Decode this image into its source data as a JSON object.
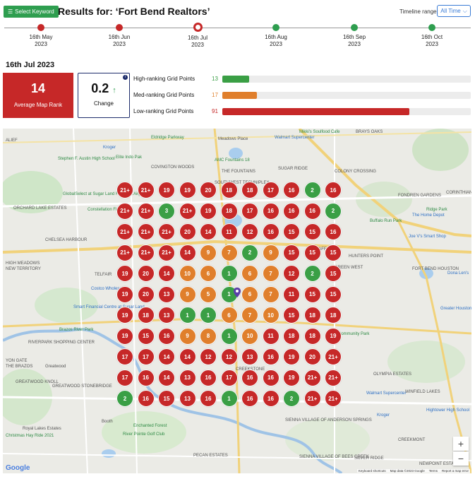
{
  "header": {
    "keyword_button": "Select Keyword",
    "keyword_icon": "list-icon",
    "title": "Results for: ‘Fort Bend Realtors’",
    "timeline_label": "Timeline range:",
    "timeline_value": "All Time"
  },
  "timeline": [
    {
      "date": "16th May",
      "year": "2023",
      "status": "red"
    },
    {
      "date": "16th Jun",
      "year": "2023",
      "status": "red"
    },
    {
      "date": "16th Jul",
      "year": "2023",
      "status": "selected"
    },
    {
      "date": "16th Aug",
      "year": "2023",
      "status": "green"
    },
    {
      "date": "16th Sep",
      "year": "2023",
      "status": "green"
    },
    {
      "date": "16th Oct",
      "year": "2023",
      "status": "green"
    }
  ],
  "selected_date": "16th Jul 2023",
  "stats": {
    "average_rank": "14",
    "average_label": "Average Map Rank",
    "change": "0.2",
    "change_arrow": "↑",
    "change_label": "Change",
    "info": "i"
  },
  "ranking": [
    {
      "label": "High-ranking Grid Points",
      "count": "13",
      "total": 121,
      "color": "#3a9f45"
    },
    {
      "label": "Med-ranking Grid Points",
      "count": "17",
      "total": 121,
      "color": "#e07f2c"
    },
    {
      "label": "Low-ranking Grid Points",
      "count": "91",
      "total": 121,
      "color": "#c62828"
    }
  ],
  "colors": {
    "red": "#c62828",
    "green": "#3a9f45",
    "orange": "#e07f2c"
  },
  "grid": [
    [
      "21+",
      "21+",
      "19",
      "19",
      "20",
      "18",
      "18",
      "17",
      "16",
      "2",
      "16"
    ],
    [
      "21+",
      "21+",
      "3",
      "21+",
      "19",
      "18",
      "17",
      "16",
      "16",
      "16",
      "2"
    ],
    [
      "21+",
      "21+",
      "21+",
      "20",
      "14",
      "11",
      "12",
      "16",
      "15",
      "15",
      "16"
    ],
    [
      "21+",
      "21+",
      "21+",
      "14",
      "9",
      "7",
      "2",
      "9",
      "15",
      "15",
      "15"
    ],
    [
      "19",
      "20",
      "14",
      "10",
      "6",
      "1",
      "6",
      "7",
      "12",
      "2",
      "15"
    ],
    [
      "19",
      "20",
      "13",
      "9",
      "5",
      "1",
      "6",
      "7",
      "11",
      "15",
      "15"
    ],
    [
      "19",
      "18",
      "13",
      "1",
      "1",
      "6",
      "7",
      "10",
      "15",
      "18",
      "18"
    ],
    [
      "19",
      "15",
      "16",
      "9",
      "8",
      "1",
      "10",
      "11",
      "18",
      "18",
      "19"
    ],
    [
      "17",
      "17",
      "14",
      "14",
      "12",
      "12",
      "13",
      "16",
      "19",
      "20",
      "21+"
    ],
    [
      "17",
      "16",
      "14",
      "13",
      "16",
      "17",
      "16",
      "16",
      "19",
      "21+",
      "21+"
    ],
    [
      "2",
      "16",
      "15",
      "13",
      "16",
      "1",
      "16",
      "16",
      "2",
      "21+",
      "21+"
    ]
  ],
  "map_labels": [
    "ALIEF",
    "BRAYS OAKS",
    "Mikki's Soulfood Cafe",
    "Kroger",
    "Eldridge Parkway",
    "Meadows Place",
    "Walmart Supercenter",
    "Stephen F. Austin High School",
    "Elite Indo Pak",
    "COVINGTON WOODS",
    "AMC Fountains 18",
    "THE FOUNTAINS",
    "SUGAR RIDGE",
    "COLONY CROSSING",
    "GlobalSelect at Sugar Land Regional Airport",
    "ORCHARD LAKE ESTATES",
    "Constellation Field",
    "SOUTHWEST TECHNIPLEX",
    "FONDREN GARDENS",
    "CORINTHIAN POINTE",
    "The Home Depot",
    "Ridge Park",
    "Buffalo Run Park",
    "Joe V's Smart Shop",
    "CHELSEA HARBOUR",
    "H-E-B",
    "HIGH MEADOWS",
    "NEW TERRITORY",
    "TELFAIR",
    "STAFFORD",
    "HUNTERS POINT",
    "Costco Wholesale",
    "GREEN WEST",
    "FORT BEND HOUSTON",
    "Smart Financial Centre at Sugar Land",
    "Greater Houston Sports C",
    "Brazos River Park",
    "RIVERPARK SHOPPING CENTER",
    "Community Park",
    "YON GATE",
    "THE BRAZOS",
    "Greatwood",
    "GREATWOOD KNOLL",
    "GREATWOOD STONEBRIDGE",
    "OLYMPIA ESTATES",
    "Walmart Supercenter",
    "WINFIELD LAKES",
    "CREEKSTONE",
    "SIENNA VILLAGE OF ANDERSON SPRINGS",
    "Hightower High School",
    "Kroger",
    "Booth",
    "Enchanted Forest",
    "Royal Lakes Estates",
    "Christmas Hay Ride 2021",
    "River Pointe Golf Club",
    "CREEKMONT",
    "PECAN ESTATES",
    "SIENNA VILLAGE OF BEES CREEK",
    "SILVER RIDGE",
    "NEWPOINT ESTATES",
    "Dona Len's"
  ],
  "map_attrib": [
    "Keyboard shortcuts",
    "Map data ©2023 Google",
    "Terms",
    "Report a map error"
  ],
  "map_logo": "Google",
  "zoom": {
    "in": "+",
    "out": "−"
  }
}
